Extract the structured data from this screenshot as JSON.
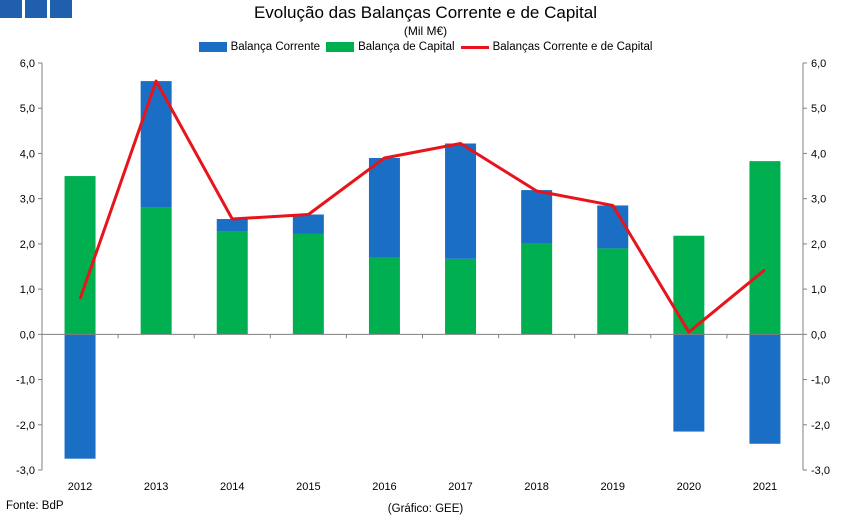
{
  "header": {
    "decoration": "blue-squares"
  },
  "chart_data": {
    "type": "bar",
    "title": "Evolução das Balanças Corrente e de Capital",
    "subtitle": "(Mil M€)",
    "categories": [
      "2012",
      "2013",
      "2014",
      "2015",
      "2016",
      "2017",
      "2018",
      "2019",
      "2020",
      "2021"
    ],
    "series": [
      {
        "name": "Balança Corrente",
        "kind": "stacked-bar",
        "color": "#1a6fc4",
        "values": [
          -2.75,
          2.8,
          0.28,
          0.43,
          2.2,
          2.55,
          1.17,
          0.95,
          -2.15,
          -2.42
        ]
      },
      {
        "name": "Balança de Capital",
        "kind": "stacked-bar",
        "color": "#00b050",
        "values": [
          3.5,
          2.8,
          2.27,
          2.22,
          1.7,
          1.67,
          2.02,
          1.9,
          2.18,
          3.83
        ]
      },
      {
        "name": "Balanças Corrente e de Capital",
        "kind": "line",
        "color": "#e8141b",
        "values": [
          0.78,
          5.6,
          2.55,
          2.65,
          3.9,
          4.22,
          3.17,
          2.85,
          0.05,
          1.43
        ]
      }
    ],
    "ylim": [
      -3.0,
      6.0
    ],
    "yticks": [
      "6,0",
      "5,0",
      "4,0",
      "3,0",
      "2,0",
      "1,0",
      "0,0",
      "-1,0",
      "-2,0",
      "-3,0"
    ],
    "ytick_values": [
      6,
      5,
      4,
      3,
      2,
      1,
      0,
      -1,
      -2,
      -3
    ],
    "xlabel": "",
    "ylabel": "",
    "legend": "top-center",
    "grid": false
  },
  "footer": {
    "source": "Fonte: BdP",
    "credit": "(Gráfico: GEE)"
  }
}
